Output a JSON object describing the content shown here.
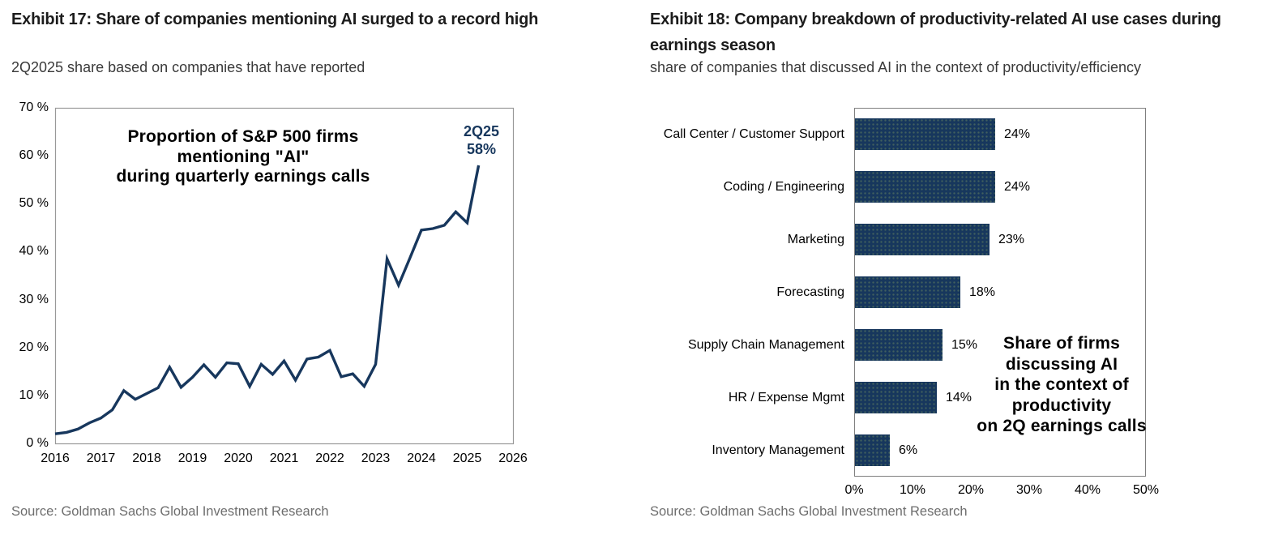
{
  "colors": {
    "navy": "#17375d",
    "title_text": "#1c1c1c",
    "subtitle_text": "#3a3a3a",
    "source_text": "#6e6e6e",
    "plot_border_left": "#999999",
    "plot_border_right": "#7f7f7f",
    "tick_text": "#000000"
  },
  "left_panel": {
    "title": "Exhibit 17: Share of companies mentioning AI surged to a record high",
    "subtitle": "2Q2025 share based on companies that have reported",
    "source": "Source: Goldman Sachs Global Investment Research"
  },
  "right_panel": {
    "title": "Exhibit 18: Company breakdown of productivity-related AI use cases during earnings season",
    "subtitle": "share of companies that discussed AI in the context of productivity/efficiency",
    "source": "Source: Goldman Sachs Global Investment Research"
  },
  "chart_data": [
    {
      "type": "line",
      "title": "Proportion of S&P 500 firms mentioning \"AI\" during quarterly earnings calls",
      "annotation_lines": [
        "Proportion of S&P 500 firms",
        "mentioning \"AI\"",
        "during quarterly earnings calls"
      ],
      "callout_lines": [
        "2Q25",
        "58%"
      ],
      "line_color": "#17375d",
      "grid": false,
      "ylim": [
        0,
        70
      ],
      "ytick_step": 10,
      "ytick_suffix": " %",
      "xticks": [
        2016,
        2017,
        2018,
        2019,
        2020,
        2021,
        2022,
        2023,
        2024,
        2025,
        2026
      ],
      "x_start_year": 2016,
      "quarters_per_point": 0.25,
      "x_quarters": [
        "1Q16",
        "2Q16",
        "3Q16",
        "4Q16",
        "1Q17",
        "2Q17",
        "3Q17",
        "4Q17",
        "1Q18",
        "2Q18",
        "3Q18",
        "4Q18",
        "1Q19",
        "2Q19",
        "3Q19",
        "4Q19",
        "1Q20",
        "2Q20",
        "3Q20",
        "4Q20",
        "1Q21",
        "2Q21",
        "3Q21",
        "4Q21",
        "1Q22",
        "2Q22",
        "3Q22",
        "4Q22",
        "1Q23",
        "2Q23",
        "3Q23",
        "4Q23",
        "1Q24",
        "2Q24",
        "3Q24",
        "4Q24",
        "1Q25",
        "2Q25"
      ],
      "values": [
        2.0,
        2.3,
        3.0,
        4.3,
        5.3,
        7.0,
        11.0,
        9.2,
        10.4,
        11.6,
        15.9,
        11.7,
        13.8,
        16.4,
        13.8,
        16.8,
        16.6,
        11.9,
        16.5,
        14.4,
        17.2,
        13.2,
        17.6,
        18.0,
        19.4,
        13.9,
        14.5,
        11.9,
        16.5,
        38.5,
        33.0,
        38.7,
        44.5,
        44.8,
        45.5,
        48.3,
        46.0,
        58.0
      ]
    },
    {
      "type": "bar",
      "orientation": "horizontal",
      "categories": [
        "Call Center / Customer Support",
        "Coding / Engineering",
        "Marketing",
        "Forecasting",
        "Supply Chain Management",
        "HR / Expense Mgmt",
        "Inventory Management"
      ],
      "values": [
        24,
        24,
        23,
        18,
        15,
        14,
        6
      ],
      "value_labels": [
        "24%",
        "24%",
        "23%",
        "18%",
        "15%",
        "14%",
        "6%"
      ],
      "xlim": [
        0,
        50
      ],
      "xticks": [
        "0%",
        "10%",
        "20%",
        "30%",
        "40%",
        "50%"
      ],
      "annotation_lines": [
        "Share of firms",
        "discussing AI",
        "in the context of",
        "productivity",
        "on 2Q earnings calls"
      ],
      "bar_color": "#17375d",
      "grid": false,
      "legend": "none"
    }
  ]
}
